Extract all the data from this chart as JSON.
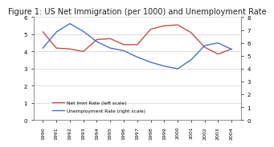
{
  "title": "Figure 1: US Net Immigration (per 1000) and Unemployment Rate",
  "years": [
    1990,
    1991,
    1992,
    1993,
    1994,
    1995,
    1996,
    1997,
    1998,
    1999,
    2000,
    2001,
    2002,
    2003,
    2004
  ],
  "net_imm": [
    5.15,
    4.2,
    4.15,
    4.0,
    4.7,
    4.75,
    4.4,
    4.4,
    5.3,
    5.5,
    5.55,
    5.1,
    4.25,
    3.85,
    4.15
  ],
  "unemp_scaled": [
    5.6,
    6.85,
    7.5,
    6.9,
    6.1,
    5.6,
    5.4,
    4.9,
    4.5,
    4.2,
    4.0,
    4.7,
    5.8,
    6.0,
    5.5
  ],
  "net_imm_color": "#c0504d",
  "unemp_color": "#4472c4",
  "net_imm_label": "Net Imm Rate (left scale)",
  "unemp_label": "Unemployment Rate (right scale)",
  "left_ylim": [
    0,
    6
  ],
  "right_ylim": [
    0,
    8
  ],
  "left_yticks": [
    0,
    1,
    2,
    3,
    4,
    5,
    6
  ],
  "right_yticks": [
    0,
    1,
    2,
    3,
    4,
    5,
    6,
    7,
    8
  ],
  "background_color": "#ffffff",
  "title_fontsize": 7.0,
  "line_width": 1.0,
  "grid_color": "#d0d0d0"
}
